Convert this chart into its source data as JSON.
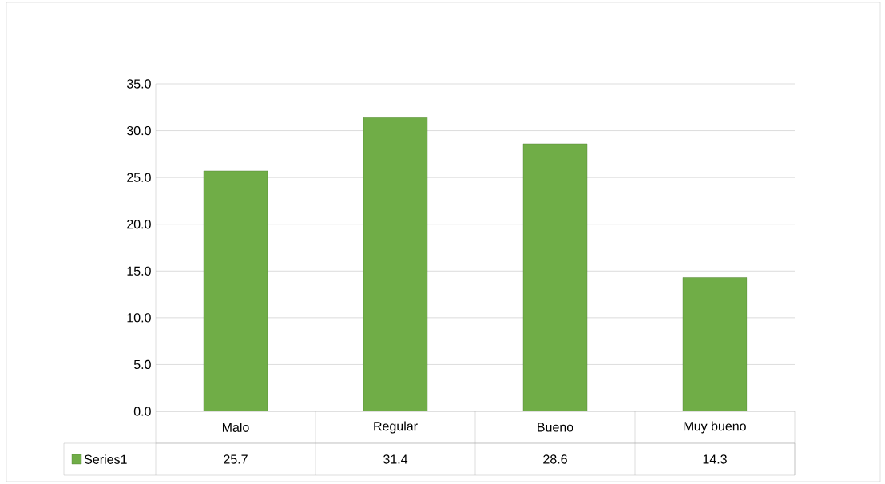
{
  "chart_data": {
    "type": "bar",
    "categories": [
      "Malo",
      "Regular",
      "Bueno",
      "Muy bueno"
    ],
    "series": [
      {
        "name": "Series1",
        "color": "#70ad47",
        "values": [
          25.7,
          31.4,
          28.6,
          14.3
        ]
      }
    ],
    "ylim": [
      0,
      35
    ],
    "yticks": [
      {
        "value": 0,
        "label": "0.0"
      },
      {
        "value": 5,
        "label": "5.0"
      },
      {
        "value": 10,
        "label": "10.0"
      },
      {
        "value": 15,
        "label": "15.0"
      },
      {
        "value": 20,
        "label": "20.0"
      },
      {
        "value": 25,
        "label": "25.0"
      },
      {
        "value": 30,
        "label": "30.0"
      },
      {
        "value": 35,
        "label": "35.0"
      }
    ],
    "grid": "y",
    "legend": "bottom",
    "data_labels": true
  }
}
